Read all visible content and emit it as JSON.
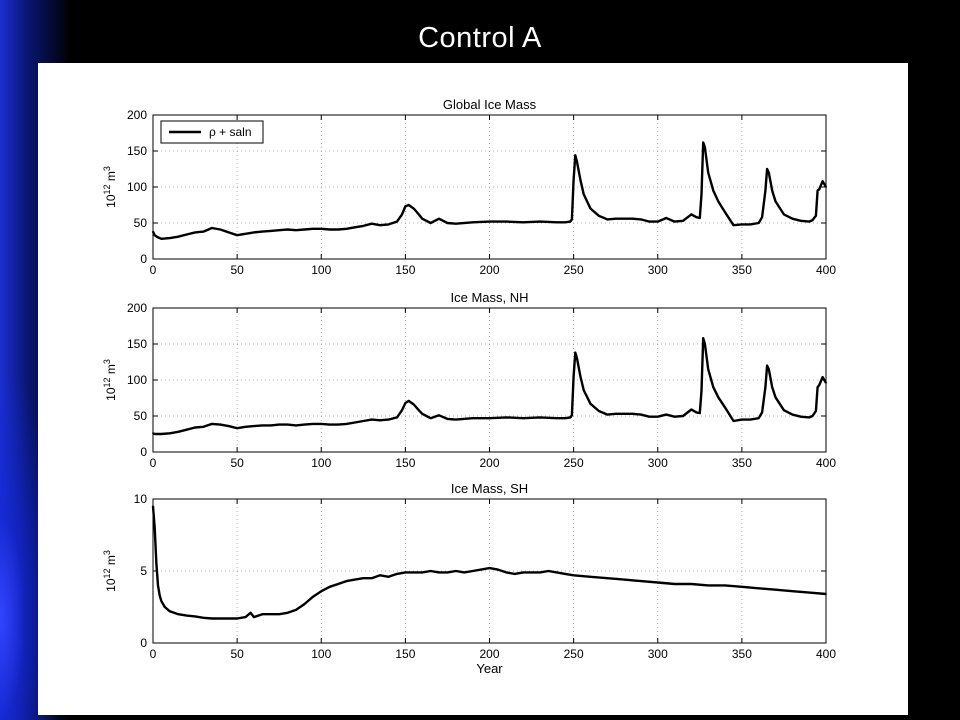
{
  "slide": {
    "title": "Control  A"
  },
  "chart_data": [
    {
      "type": "line",
      "title": "Global Ice Mass",
      "xlabel": "",
      "ylabel": "10^12 m^3",
      "xlim": [
        0,
        400
      ],
      "ylim": [
        0,
        200
      ],
      "xticks": [
        "0",
        "50",
        "100",
        "150",
        "200",
        "250",
        "300",
        "350",
        "400"
      ],
      "yticks": [
        "0",
        "50",
        "100",
        "150",
        "200"
      ],
      "grid": true,
      "legend": {
        "position": "top-left",
        "entries": [
          "ρ + saln"
        ]
      },
      "series": [
        {
          "name": "ρ + saln",
          "x": [
            0,
            1,
            3,
            5,
            10,
            15,
            20,
            25,
            30,
            35,
            40,
            45,
            50,
            55,
            60,
            65,
            70,
            75,
            80,
            85,
            90,
            95,
            100,
            105,
            110,
            115,
            120,
            125,
            130,
            135,
            140,
            145,
            148,
            150,
            152,
            155,
            158,
            160,
            165,
            170,
            175,
            180,
            190,
            200,
            210,
            220,
            230,
            240,
            245,
            248,
            249,
            250,
            251,
            252,
            254,
            256,
            260,
            265,
            270,
            275,
            280,
            285,
            290,
            295,
            300,
            305,
            310,
            315,
            320,
            323,
            325,
            326,
            327,
            328,
            330,
            333,
            336,
            340,
            345,
            350,
            355,
            360,
            362,
            364,
            365,
            366,
            368,
            370,
            375,
            380,
            385,
            390,
            392,
            394,
            395,
            396,
            398,
            400
          ],
          "y": [
            38,
            33,
            30,
            28,
            29,
            31,
            34,
            37,
            38,
            43,
            41,
            37,
            33,
            35,
            37,
            38,
            39,
            40,
            41,
            40,
            41,
            42,
            42,
            41,
            41,
            42,
            44,
            46,
            49,
            47,
            48,
            52,
            62,
            73,
            75,
            70,
            62,
            56,
            50,
            56,
            50,
            49,
            51,
            52,
            52,
            51,
            52,
            51,
            51,
            52,
            55,
            110,
            144,
            135,
            110,
            90,
            70,
            60,
            55,
            56,
            56,
            56,
            55,
            52,
            52,
            57,
            52,
            53,
            62,
            58,
            57,
            90,
            162,
            155,
            120,
            95,
            80,
            65,
            47,
            48,
            48,
            50,
            58,
            95,
            125,
            120,
            95,
            80,
            62,
            56,
            53,
            52,
            54,
            60,
            95,
            97,
            108,
            100
          ]
        }
      ]
    },
    {
      "type": "line",
      "title": "Ice Mass, NH",
      "xlabel": "",
      "ylabel": "10^12 m^3",
      "xlim": [
        0,
        400
      ],
      "ylim": [
        0,
        200
      ],
      "xticks": [
        "0",
        "50",
        "100",
        "150",
        "200",
        "250",
        "300",
        "350",
        "400"
      ],
      "yticks": [
        "0",
        "50",
        "100",
        "150",
        "200"
      ],
      "grid": true,
      "series": [
        {
          "x": [
            0,
            1,
            3,
            5,
            10,
            15,
            20,
            25,
            30,
            35,
            40,
            45,
            50,
            55,
            60,
            65,
            70,
            75,
            80,
            85,
            90,
            95,
            100,
            105,
            110,
            115,
            120,
            125,
            130,
            135,
            140,
            145,
            148,
            150,
            152,
            155,
            158,
            160,
            165,
            170,
            175,
            180,
            190,
            200,
            210,
            220,
            230,
            240,
            245,
            248,
            249,
            250,
            251,
            252,
            254,
            256,
            260,
            265,
            270,
            275,
            280,
            285,
            290,
            295,
            300,
            305,
            310,
            315,
            320,
            323,
            325,
            326,
            327,
            328,
            330,
            333,
            336,
            340,
            345,
            350,
            355,
            360,
            362,
            364,
            365,
            366,
            368,
            370,
            375,
            380,
            385,
            390,
            392,
            394,
            395,
            396,
            398,
            400
          ],
          "y": [
            26,
            25,
            25,
            25,
            26,
            28,
            31,
            34,
            35,
            39,
            38,
            36,
            33,
            35,
            36,
            37,
            37,
            38,
            38,
            37,
            38,
            39,
            39,
            38,
            38,
            39,
            41,
            43,
            45,
            44,
            45,
            48,
            58,
            68,
            71,
            66,
            58,
            53,
            47,
            51,
            46,
            45,
            47,
            47,
            48,
            47,
            48,
            47,
            47,
            48,
            51,
            105,
            138,
            130,
            105,
            86,
            67,
            57,
            52,
            53,
            53,
            53,
            52,
            49,
            49,
            52,
            49,
            50,
            59,
            55,
            54,
            85,
            158,
            150,
            115,
            90,
            76,
            62,
            43,
            45,
            45,
            47,
            55,
            90,
            120,
            115,
            90,
            76,
            58,
            52,
            49,
            48,
            50,
            57,
            90,
            93,
            104,
            96
          ]
        }
      ]
    },
    {
      "type": "line",
      "title": "Ice Mass, SH",
      "xlabel": "Year",
      "ylabel": "10^12 m^3",
      "xlim": [
        0,
        400
      ],
      "ylim": [
        0,
        10
      ],
      "xticks": [
        "0",
        "50",
        "100",
        "150",
        "200",
        "250",
        "300",
        "350",
        "400"
      ],
      "yticks": [
        "0",
        "5",
        "10"
      ],
      "grid": true,
      "series": [
        {
          "x": [
            0,
            1,
            2,
            3,
            4,
            5,
            7,
            10,
            15,
            20,
            25,
            30,
            35,
            40,
            45,
            50,
            55,
            58,
            60,
            65,
            70,
            75,
            80,
            85,
            90,
            95,
            100,
            105,
            110,
            115,
            120,
            125,
            130,
            135,
            140,
            145,
            150,
            155,
            160,
            165,
            170,
            175,
            180,
            185,
            190,
            195,
            200,
            205,
            210,
            215,
            220,
            225,
            230,
            235,
            240,
            245,
            250,
            260,
            270,
            280,
            290,
            300,
            310,
            320,
            330,
            340,
            350,
            360,
            370,
            380,
            390,
            400
          ],
          "y": [
            9.5,
            8.0,
            5.5,
            4.0,
            3.3,
            2.9,
            2.5,
            2.2,
            2.0,
            1.9,
            1.85,
            1.75,
            1.7,
            1.7,
            1.7,
            1.7,
            1.8,
            2.1,
            1.8,
            2.0,
            2.0,
            2.0,
            2.1,
            2.3,
            2.7,
            3.2,
            3.6,
            3.9,
            4.1,
            4.3,
            4.4,
            4.5,
            4.5,
            4.7,
            4.6,
            4.8,
            4.9,
            4.9,
            4.9,
            5.0,
            4.9,
            4.9,
            5.0,
            4.9,
            5.0,
            5.1,
            5.2,
            5.1,
            4.9,
            4.8,
            4.9,
            4.9,
            4.9,
            5.0,
            4.9,
            4.8,
            4.7,
            4.6,
            4.5,
            4.4,
            4.3,
            4.2,
            4.1,
            4.1,
            4.0,
            4.0,
            3.9,
            3.8,
            3.7,
            3.6,
            3.5,
            3.4
          ]
        }
      ]
    }
  ]
}
